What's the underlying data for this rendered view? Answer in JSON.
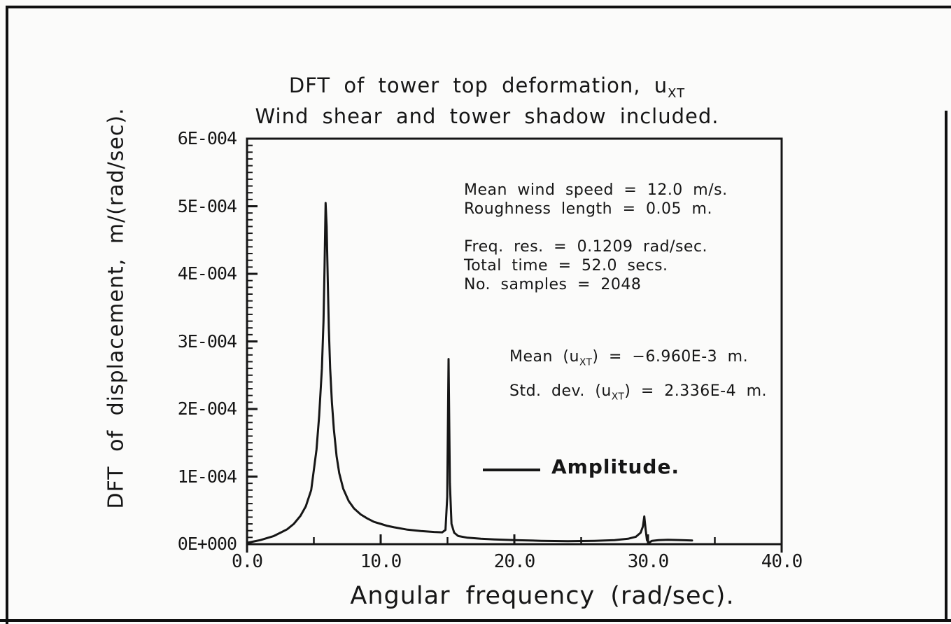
{
  "page": {
    "background": "#fbfbfa",
    "ink": "#161616"
  },
  "chart_data": {
    "type": "line",
    "title_parts": {
      "line1_pre": "DFT of tower top deformation, u",
      "line1_sub": "XT",
      "line2": "Wind shear and tower shadow included."
    },
    "xlabel": "Angular frequency (rad/sec).",
    "ylabel": "DFT of displacement, m/(rad/sec).",
    "xlim": [
      0,
      40
    ],
    "ylim": [
      0,
      0.0006
    ],
    "grid": false,
    "x_ticks": {
      "values": [
        0,
        10,
        20,
        30,
        40
      ],
      "labels": [
        "0.0",
        "10.0",
        "20.0",
        "30.0",
        "40.0"
      ],
      "minor_step": 5
    },
    "y_ticks": {
      "values": [
        0,
        0.0001,
        0.0002,
        0.0003,
        0.0004,
        0.0005,
        0.0006
      ],
      "labels": [
        "0E+000",
        "1E-004",
        "2E-004",
        "3E-004",
        "4E-004",
        "5E-004",
        "6E-004"
      ],
      "minor_step": 1e-05
    },
    "legend": {
      "position": "inside-lower-middle",
      "entries": [
        {
          "label": "Amplitude.",
          "style": "solid-line",
          "color": "#161616"
        }
      ]
    },
    "annotations": {
      "wind": [
        "Mean wind speed = 12.0 m/s.",
        "Roughness length = 0.05 m."
      ],
      "sampling": [
        "Freq. res. = 0.1209 rad/sec.",
        "Total time = 52.0 secs.",
        "No. samples = 2048"
      ],
      "stats": [
        {
          "pre": "Mean (u",
          "sub": "XT",
          "post": ") = −6.960E-3 m."
        },
        {
          "pre": "Std. dev. (u",
          "sub": "XT",
          "post": ") = 2.336E-4 m."
        }
      ]
    },
    "peaks": [
      {
        "x": 5.9,
        "y": 0.000505
      },
      {
        "x": 15.1,
        "y": 0.000274
      },
      {
        "x": 29.7,
        "y": 4.1e-05
      }
    ],
    "series": [
      {
        "name": "Amplitude.",
        "color": "#161616",
        "points": [
          [
            0,
            2e-06
          ],
          [
            0.5,
            4e-06
          ],
          [
            1,
            6e-06
          ],
          [
            1.5,
            9e-06
          ],
          [
            2,
            1.2e-05
          ],
          [
            2.5,
            1.7e-05
          ],
          [
            3,
            2.2e-05
          ],
          [
            3.5,
            3e-05
          ],
          [
            4,
            4.2e-05
          ],
          [
            4.4,
            5.6e-05
          ],
          [
            4.8,
            8e-05
          ],
          [
            5,
            0.00011
          ],
          [
            5.2,
            0.00014
          ],
          [
            5.4,
            0.00019
          ],
          [
            5.6,
            0.00026
          ],
          [
            5.72,
            0.00033
          ],
          [
            5.8,
            0.00041
          ],
          [
            5.88,
            0.000505
          ],
          [
            5.96,
            0.00047
          ],
          [
            6.04,
            0.00039
          ],
          [
            6.12,
            0.00032
          ],
          [
            6.22,
            0.00026
          ],
          [
            6.35,
            0.00021
          ],
          [
            6.5,
            0.00017
          ],
          [
            6.7,
            0.00013
          ],
          [
            6.9,
            0.000105
          ],
          [
            7.2,
            8.2e-05
          ],
          [
            7.6,
            6.4e-05
          ],
          [
            8,
            5.3e-05
          ],
          [
            8.5,
            4.4e-05
          ],
          [
            9,
            3.8e-05
          ],
          [
            9.5,
            3.3e-05
          ],
          [
            10,
            3e-05
          ],
          [
            10.5,
            2.7e-05
          ],
          [
            11,
            2.5e-05
          ],
          [
            12,
            2.15e-05
          ],
          [
            13,
            1.95e-05
          ],
          [
            14,
            1.8e-05
          ],
          [
            14.6,
            1.75e-05
          ],
          [
            14.85,
            2.1e-05
          ],
          [
            14.98,
            7e-05
          ],
          [
            15.08,
            0.000274
          ],
          [
            15.18,
            9e-05
          ],
          [
            15.3,
            3e-05
          ],
          [
            15.5,
            1.7e-05
          ],
          [
            15.8,
            1.2e-05
          ],
          [
            16.5,
            9.5e-06
          ],
          [
            17.5,
            8e-06
          ],
          [
            18.5,
            7e-06
          ],
          [
            20,
            6e-06
          ],
          [
            22,
            5e-06
          ],
          [
            24,
            4.5e-06
          ],
          [
            26,
            5e-06
          ],
          [
            27.5,
            6e-06
          ],
          [
            28.5,
            8e-06
          ],
          [
            29.1,
            1.1e-05
          ],
          [
            29.45,
            1.7e-05
          ],
          [
            29.62,
            2.6e-05
          ],
          [
            29.72,
            4.1e-05
          ],
          [
            29.82,
            2.2e-05
          ],
          [
            29.92,
            6e-06
          ],
          [
            30.05,
            2e-06
          ],
          [
            30.3,
            5e-06
          ],
          [
            30.8,
            6e-06
          ],
          [
            31.5,
            6.5e-06
          ],
          [
            32.5,
            6e-06
          ],
          [
            33.3,
            5.5e-06
          ]
        ]
      }
    ]
  }
}
